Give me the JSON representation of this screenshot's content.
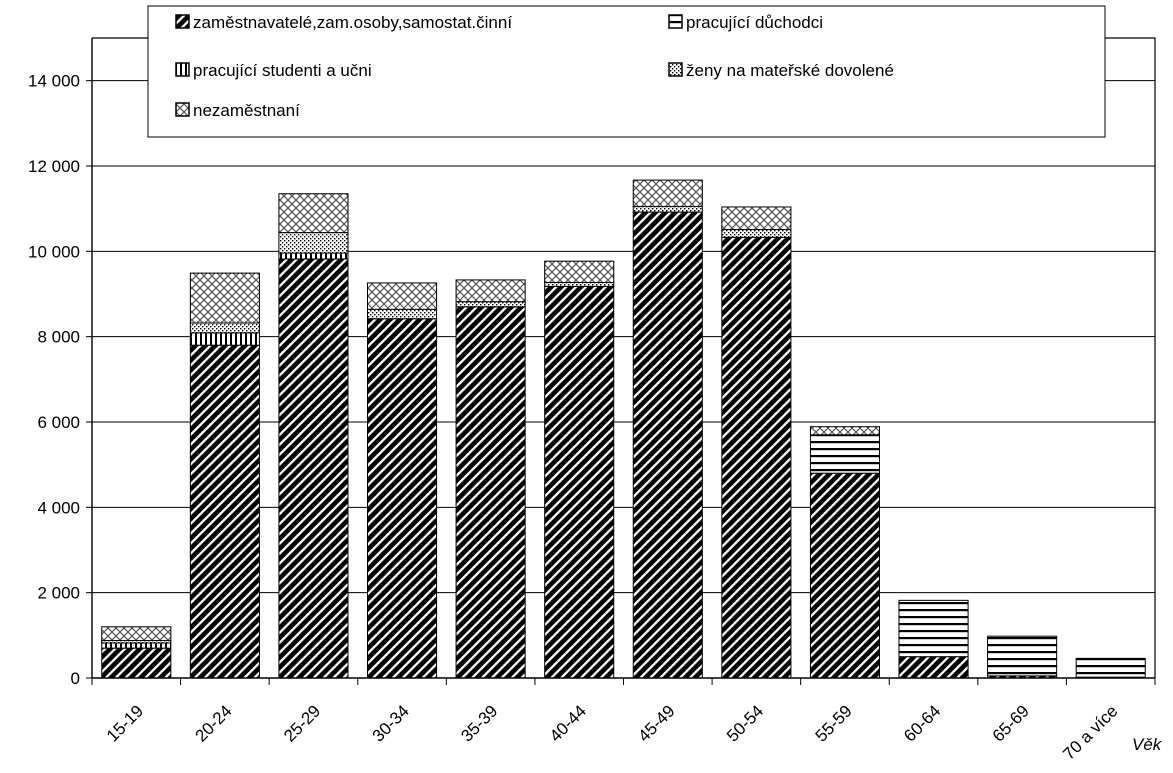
{
  "chart_data": {
    "type": "bar",
    "stacked": true,
    "categories": [
      "15-19",
      "20-24",
      "25-29",
      "30-34",
      "35-39",
      "40-44",
      "45-49",
      "50-54",
      "55-59",
      "60-64",
      "65-69",
      "70 a více"
    ],
    "series": [
      {
        "name": "zaměstnavatelé,zam.osoby,samostat.činní",
        "pattern": "diag-dark",
        "values": [
          700,
          7800,
          9820,
          8420,
          8700,
          9180,
          10920,
          10330,
          4800,
          500,
          50,
          20
        ]
      },
      {
        "name": "pracující důchodci",
        "pattern": "horizontal",
        "values": [
          0,
          0,
          0,
          0,
          0,
          0,
          0,
          0,
          900,
          1320,
          930,
          440
        ]
      },
      {
        "name": "pracující studenti a učni",
        "pattern": "vertical",
        "values": [
          120,
          290,
          140,
          0,
          0,
          0,
          0,
          0,
          0,
          0,
          0,
          0
        ]
      },
      {
        "name": "ženy na mateřské dovolené",
        "pattern": "dots",
        "values": [
          60,
          230,
          480,
          220,
          120,
          90,
          130,
          180,
          0,
          0,
          0,
          0
        ]
      },
      {
        "name": "nezaměstnaní",
        "pattern": "cross",
        "values": [
          320,
          1170,
          910,
          620,
          510,
          500,
          620,
          530,
          190,
          0,
          0,
          0
        ]
      }
    ],
    "y_ticks": [
      "0",
      "2 000",
      "4 000",
      "6 000",
      "8 000",
      "10 000",
      "12 000",
      "14 000"
    ],
    "ylim": [
      0,
      15000
    ],
    "xlabel": "Věk",
    "ylabel": "",
    "title": "",
    "grid": true,
    "legend_position": "top"
  }
}
